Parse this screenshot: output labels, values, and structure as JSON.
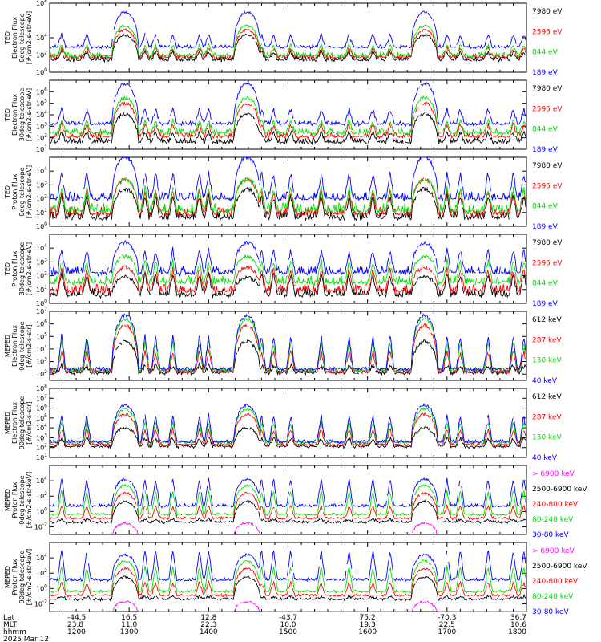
{
  "chart_data": {
    "type": "line",
    "footer": {
      "row_labels": [
        "Lat",
        "MLT",
        "hhmm",
        "2025 Mar 12"
      ],
      "columns": [
        {
          "lat": "-44.5",
          "mlt": "23.8",
          "hhmm": "1200"
        },
        {
          "lat": "16.5",
          "mlt": "11.0",
          "hhmm": "1300"
        },
        {
          "lat": "12.8",
          "mlt": "22.3",
          "hhmm": "1400"
        },
        {
          "lat": "-43.7",
          "mlt": "10.0",
          "hhmm": "1500"
        },
        {
          "lat": "75.2",
          "mlt": "19.3",
          "hhmm": "1600"
        },
        {
          "lat": "-70.3",
          "mlt": "22.5",
          "hhmm": "1700"
        },
        {
          "lat": "36.7",
          "mlt": "10.6",
          "hhmm": "1800"
        }
      ]
    },
    "x": {
      "label": "hhmm",
      "range_min": [
        720,
        1080
      ]
    },
    "panels": [
      {
        "ylabel": [
          "TED",
          "Electron Flux",
          "0deg telescope",
          "[#/cm2-s-str-eV]"
        ],
        "ticks": [
          {
            "exp": 8,
            "v": 8
          },
          {
            "exp": 4,
            "v": 4
          },
          {
            "exp": 2,
            "v": 2
          },
          {
            "exp": 0,
            "v": 0
          }
        ],
        "ylim_log10": [
          0,
          8
        ],
        "series": [
          {
            "name": "7980 eV",
            "color": "#000000",
            "base": 1.3,
            "amp": 3.0,
            "noise": 0.6,
            "spikes": 0.9
          },
          {
            "name": "2595 eV",
            "color": "#ff0000",
            "base": 1.6,
            "amp": 3.3,
            "noise": 0.5,
            "spikes": 1.0
          },
          {
            "name": "844 eV",
            "color": "#00dd00",
            "base": 1.8,
            "amp": 3.6,
            "noise": 0.5,
            "spikes": 1.2
          },
          {
            "name": "189 eV",
            "color": "#0000ff",
            "base": 2.8,
            "amp": 4.2,
            "noise": 0.4,
            "spikes": 1.4
          }
        ]
      },
      {
        "ylabel": [
          "TED",
          "Electron Flux",
          "30deg telescope",
          "[#/cm2-s-str-eV]"
        ],
        "ticks": [
          {
            "exp": 6,
            "v": 6
          },
          {
            "exp": 5,
            "v": 5
          },
          {
            "exp": 4,
            "v": 4
          },
          {
            "exp": 3,
            "v": 3
          },
          {
            "exp": 2,
            "v": 2
          },
          {
            "exp": 1,
            "v": 1
          }
        ],
        "ylim_log10": [
          1,
          7
        ],
        "series": [
          {
            "name": "7980 eV",
            "color": "#000000",
            "base": 1.5,
            "amp": 2.6,
            "noise": 0.5,
            "spikes": 0.8
          },
          {
            "name": "2595 eV",
            "color": "#ff0000",
            "base": 2.0,
            "amp": 3.0,
            "noise": 0.5,
            "spikes": 1.0
          },
          {
            "name": "844 eV",
            "color": "#00dd00",
            "base": 2.3,
            "amp": 3.2,
            "noise": 0.5,
            "spikes": 1.0
          },
          {
            "name": "189 eV",
            "color": "#0000ff",
            "base": 3.1,
            "amp": 3.6,
            "noise": 0.35,
            "spikes": 1.2
          }
        ]
      },
      {
        "ylabel": [
          "TED",
          "Proton Flux",
          "0deg telescope",
          "[#/cm2-s-str-eV]"
        ],
        "ticks": [
          {
            "exp": 4,
            "v": 4
          },
          {
            "exp": 3,
            "v": 3
          },
          {
            "exp": 2,
            "v": 2
          },
          {
            "exp": 1,
            "v": 1
          },
          {
            "exp": 0,
            "v": 0
          }
        ],
        "ylim_log10": [
          0,
          5
        ],
        "series": [
          {
            "name": "7980 eV",
            "color": "#000000",
            "base": 0.5,
            "amp": 2.2,
            "noise": 0.6,
            "spikes": 1.5
          },
          {
            "name": "2595 eV",
            "color": "#ff0000",
            "base": 0.8,
            "amp": 2.6,
            "noise": 0.6,
            "spikes": 1.6
          },
          {
            "name": "844 eV",
            "color": "#00dd00",
            "base": 1.0,
            "amp": 2.4,
            "noise": 0.7,
            "spikes": 1.6
          },
          {
            "name": "189 eV",
            "color": "#0000ff",
            "base": 1.9,
            "amp": 3.1,
            "noise": 0.6,
            "spikes": 1.8
          }
        ]
      },
      {
        "ylabel": [
          "TED",
          "Proton Flux",
          "30deg telescope",
          "[#/cm2-s-str-eV]"
        ],
        "ticks": [
          {
            "exp": 4,
            "v": 4
          },
          {
            "exp": 3,
            "v": 3
          },
          {
            "exp": 2,
            "v": 2
          },
          {
            "exp": 1,
            "v": 1
          },
          {
            "exp": 0,
            "v": 0
          }
        ],
        "ylim_log10": [
          0,
          5
        ],
        "series": [
          {
            "name": "7980 eV",
            "color": "#000000",
            "base": 0.5,
            "amp": 1.4,
            "noise": 0.6,
            "spikes": 1.4
          },
          {
            "name": "2595 eV",
            "color": "#ff0000",
            "base": 0.8,
            "amp": 1.8,
            "noise": 0.6,
            "spikes": 1.5
          },
          {
            "name": "844 eV",
            "color": "#00dd00",
            "base": 1.4,
            "amp": 2.0,
            "noise": 0.6,
            "spikes": 1.5
          },
          {
            "name": "189 eV",
            "color": "#0000ff",
            "base": 2.1,
            "amp": 2.3,
            "noise": 0.6,
            "spikes": 1.6
          }
        ]
      },
      {
        "ylabel": [
          "MEPED",
          "Electron Flux",
          "0deg telescope",
          "[#/cm2-s-str]"
        ],
        "ticks": [
          {
            "exp": 7,
            "v": 7
          },
          {
            "exp": 6,
            "v": 6
          },
          {
            "exp": 5,
            "v": 5
          },
          {
            "exp": 4,
            "v": 4
          },
          {
            "exp": 3,
            "v": 3
          },
          {
            "exp": 2,
            "v": 2
          }
        ],
        "ylim_log10": [
          1.5,
          7
        ],
        "series": [
          {
            "name": "612 keV",
            "color": "#000000",
            "base": 2.0,
            "amp": 2.6,
            "noise": 0.3,
            "spikes": 0.5
          },
          {
            "name": "287 keV",
            "color": "#ff0000",
            "base": 2.1,
            "amp": 3.8,
            "noise": 0.3,
            "spikes": 1.5
          },
          {
            "name": "130 keV",
            "color": "#00dd00",
            "base": 2.2,
            "amp": 4.2,
            "noise": 0.25,
            "spikes": 2.2
          },
          {
            "name": "40 keV",
            "color": "#0000ff",
            "base": 2.3,
            "amp": 4.4,
            "noise": 0.25,
            "spikes": 2.6
          }
        ]
      },
      {
        "ylabel": [
          "MEPED",
          "Electron Flux",
          "90deg telescope",
          "[#/cm2-s-str]"
        ],
        "ticks": [
          {
            "exp": 8,
            "v": 8
          },
          {
            "exp": 7,
            "v": 7
          },
          {
            "exp": 6,
            "v": 6
          },
          {
            "exp": 5,
            "v": 5
          },
          {
            "exp": 4,
            "v": 4
          },
          {
            "exp": 3,
            "v": 3
          },
          {
            "exp": 2,
            "v": 2
          },
          {
            "exp": 1,
            "v": 1
          }
        ],
        "ylim_log10": [
          1,
          8
        ],
        "series": [
          {
            "name": "612 keV",
            "color": "#000000",
            "base": 2.0,
            "amp": 2.0,
            "noise": 0.3,
            "spikes": 0.8
          },
          {
            "name": "287 keV",
            "color": "#ff0000",
            "base": 2.2,
            "amp": 3.2,
            "noise": 0.3,
            "spikes": 1.5
          },
          {
            "name": "130 keV",
            "color": "#00dd00",
            "base": 2.4,
            "amp": 3.5,
            "noise": 0.3,
            "spikes": 2.0
          },
          {
            "name": "40 keV",
            "color": "#0000ff",
            "base": 2.5,
            "amp": 3.8,
            "noise": 0.3,
            "spikes": 2.6
          }
        ]
      },
      {
        "ylabel": [
          "MEPED",
          "Proton Flux",
          "0deg telescope",
          "[#/cm2-s-str-keV]"
        ],
        "ticks": [
          {
            "exp": 4,
            "v": 4
          },
          {
            "exp": 2,
            "v": 2
          },
          {
            "exp": 0,
            "v": 0
          },
          {
            "exp": -2,
            "v": -2
          }
        ],
        "ylim_log10": [
          -3,
          6
        ],
        "series": [
          {
            "name": "> 6900 keV",
            "color": "#ff00ff",
            "base": -3.5,
            "amp": 2.0,
            "noise": 0.2,
            "spikes": 0.0
          },
          {
            "name": "2500-6900 keV",
            "color": "#000000",
            "base": -1.5,
            "amp": 2.8,
            "noise": 0.3,
            "spikes": 0.3
          },
          {
            "name": "240-800 keV",
            "color": "#ff0000",
            "base": -1.0,
            "amp": 3.4,
            "noise": 0.3,
            "spikes": 1.5
          },
          {
            "name": "80-240 keV",
            "color": "#00dd00",
            "base": -0.5,
            "amp": 3.9,
            "noise": 0.3,
            "spikes": 3.0
          },
          {
            "name": "30-80 keV",
            "color": "#0000ff",
            "base": 0.6,
            "amp": 3.6,
            "noise": 0.4,
            "spikes": 3.5
          }
        ]
      },
      {
        "ylabel": [
          "MEPED",
          "Proton Flux",
          "90deg telescope",
          "[#/cm2-s-str-keV]"
        ],
        "ticks": [
          {
            "exp": 4,
            "v": 4
          },
          {
            "exp": 2,
            "v": 2
          },
          {
            "exp": 0,
            "v": 0
          },
          {
            "exp": -2,
            "v": -2
          }
        ],
        "ylim_log10": [
          -3,
          6
        ],
        "series": [
          {
            "name": "> 6900 keV",
            "color": "#ff00ff",
            "base": -3.5,
            "amp": 1.8,
            "noise": 0.2,
            "spikes": 0.0
          },
          {
            "name": "2500-6900 keV",
            "color": "#000000",
            "base": -1.5,
            "amp": 3.0,
            "noise": 0.3,
            "spikes": 0.3
          },
          {
            "name": "240-800 keV",
            "color": "#ff0000",
            "base": -1.0,
            "amp": 3.6,
            "noise": 0.3,
            "spikes": 1.6
          },
          {
            "name": "80-240 keV",
            "color": "#00dd00",
            "base": -0.5,
            "amp": 4.1,
            "noise": 0.3,
            "spikes": 3.2
          },
          {
            "name": "30-80 keV",
            "color": "#0000ff",
            "base": 1.0,
            "amp": 3.4,
            "noise": 0.4,
            "spikes": 3.8
          }
        ]
      }
    ],
    "events": {
      "pass_centers_min": [
        777,
        869,
        1003
      ],
      "pass_half_width_min": 10,
      "spike_times_min": [
        729,
        748,
        792,
        800,
        813,
        833,
        840,
        880,
        889,
        902,
        925,
        946,
        964,
        977,
        1020,
        1030,
        1051,
        1070,
        1078
      ]
    }
  }
}
